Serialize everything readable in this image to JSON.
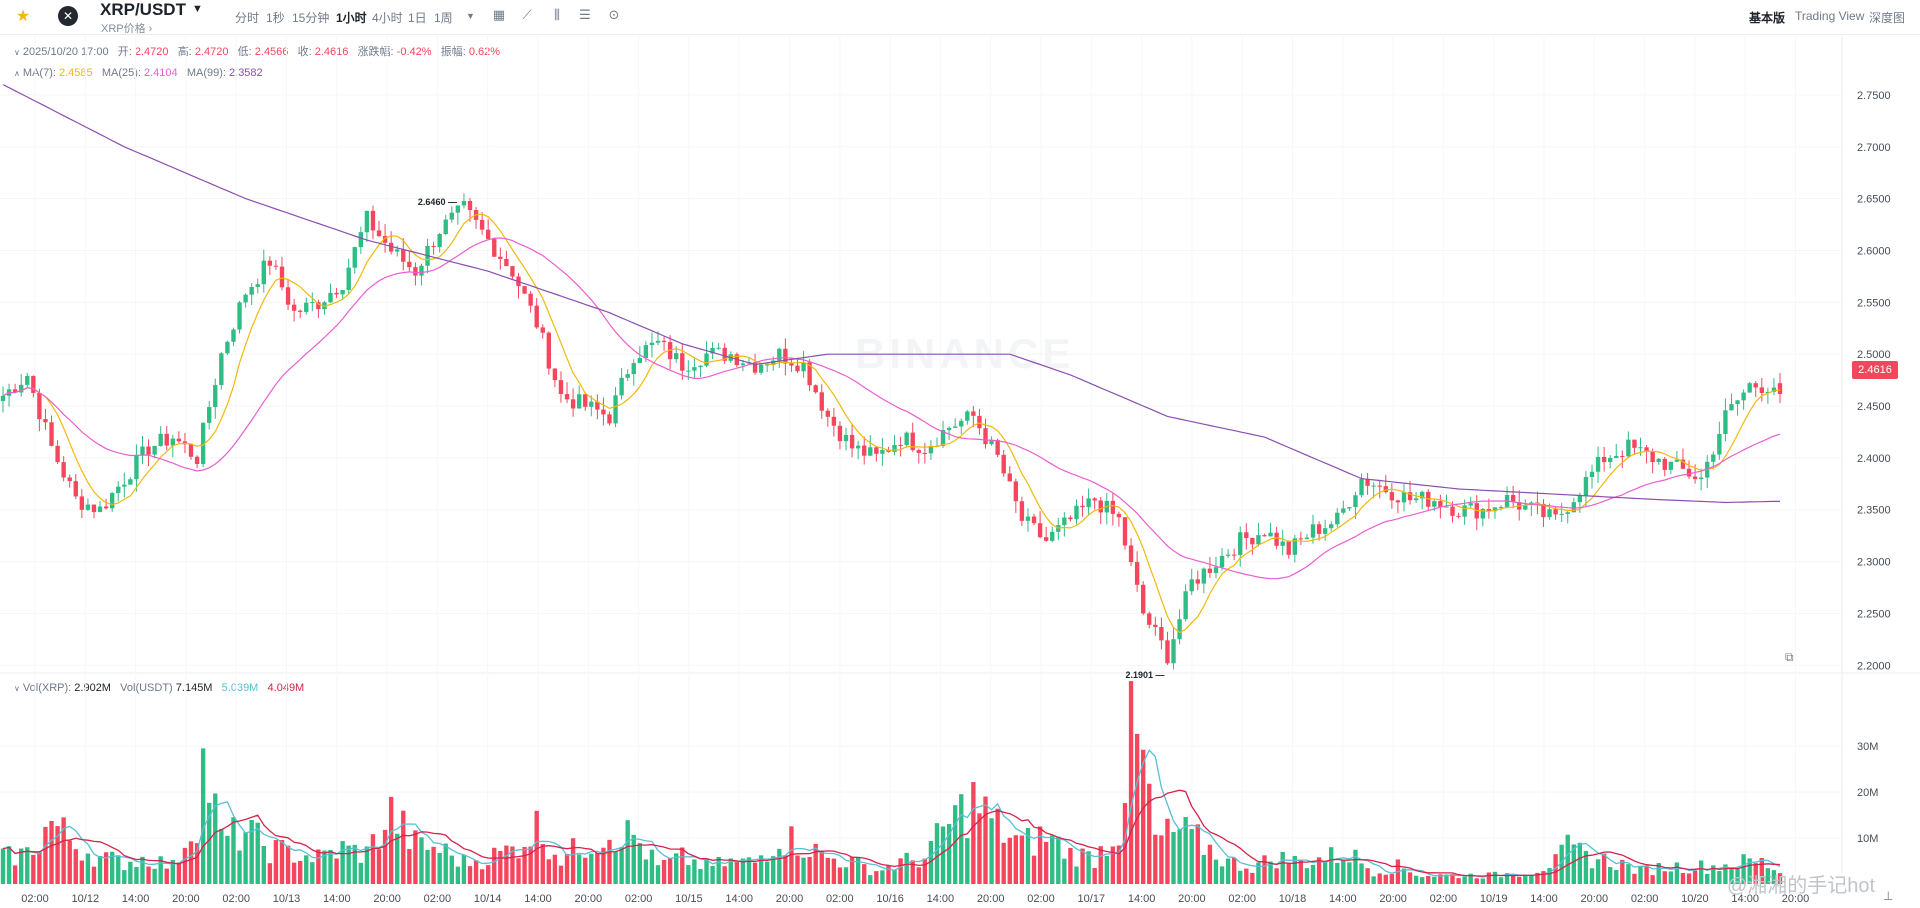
{
  "header": {
    "pair": "XRP/USDT",
    "subtitle": "XRP价格",
    "intervals": [
      "分时",
      "1秒",
      "15分钟",
      "1小时",
      "4小时",
      "1日",
      "1周"
    ],
    "active_interval": "1小时",
    "tools": [
      "calendar-icon",
      "line-chart-icon",
      "candle-type-icon",
      "indicator-settings-icon",
      "settings-icon"
    ],
    "views": [
      "基本版",
      "Trading View",
      "深度图"
    ],
    "active_view": "基本版"
  },
  "ohlc": {
    "time": "2025/10/20 17:00",
    "open_label": "开:",
    "open": "2.4720",
    "high_label": "高:",
    "high": "2.4720",
    "low_label": "低:",
    "low": "2.4566",
    "close_label": "收:",
    "close": "2.4616",
    "change_label": "涨跌幅:",
    "change": "-0.42%",
    "amp_label": "振幅:",
    "amp": "0.62%"
  },
  "ma": {
    "ma7_label": "MA(7):",
    "ma7": "2.4585",
    "ma25_label": "MA(25):",
    "ma25": "2.4104",
    "ma99_label": "MA(99):",
    "ma99": "2.3582"
  },
  "vol": {
    "xrp_label": "Vol(XRP):",
    "xrp": "2.902M",
    "usdt_label": "Vol(USDT)",
    "usdt": "7.145M",
    "ma1": "5.039M",
    "ma2": "4.049M"
  },
  "colors": {
    "up": "#2ebd85",
    "down": "#f6465d",
    "ma7": "#f0b90b",
    "ma25": "#e95fd1",
    "ma99": "#8a4fb0",
    "vol_ma1": "#58bfd6",
    "vol_ma2": "#d6234a"
  },
  "current_price": "2.4616",
  "watermark": "BINANCE",
  "footer_mark": "@湘湘的手记hot",
  "chart_data": {
    "type": "candlestick",
    "interval": "1h",
    "price_axis": {
      "ticks": [
        "2.7500",
        "2.7000",
        "2.6500",
        "2.6000",
        "2.5500",
        "2.5000",
        "2.4500",
        "2.4000",
        "2.3500",
        "2.3000",
        "2.2500",
        "2.2000"
      ],
      "range": [
        2.18,
        2.775
      ]
    },
    "volume_axis": {
      "ticks": [
        "30M",
        "20M",
        "10M"
      ],
      "range": [
        0,
        37
      ]
    },
    "time_ticks": [
      "02:00",
      "10/12",
      "14:00",
      "20:00",
      "02:00",
      "10/13",
      "14:00",
      "20:00",
      "02:00",
      "10/14",
      "14:00",
      "20:00",
      "02:00",
      "10/15",
      "14:00",
      "20:00",
      "02:00",
      "10/16",
      "14:00",
      "20:00",
      "02:00",
      "10/17",
      "14:00",
      "20:00",
      "02:00",
      "10/18",
      "14:00",
      "20:00",
      "02:00",
      "10/19",
      "14:00",
      "20:00",
      "02:00",
      "10/20",
      "14:00",
      "20:00"
    ],
    "annotations": {
      "high": "2.6460",
      "low": "2.1901"
    },
    "close_path": [
      [
        0,
        2.46
      ],
      [
        4,
        2.48
      ],
      [
        8,
        2.41
      ],
      [
        12,
        2.36
      ],
      [
        16,
        2.35
      ],
      [
        20,
        2.38
      ],
      [
        24,
        2.41
      ],
      [
        28,
        2.42
      ],
      [
        32,
        2.4
      ],
      [
        36,
        2.5
      ],
      [
        40,
        2.56
      ],
      [
        44,
        2.59
      ],
      [
        48,
        2.54
      ],
      [
        52,
        2.55
      ],
      [
        56,
        2.57
      ],
      [
        60,
        2.63
      ],
      [
        64,
        2.6
      ],
      [
        68,
        2.58
      ],
      [
        72,
        2.62
      ],
      [
        76,
        2.64
      ],
      [
        80,
        2.61
      ],
      [
        84,
        2.58
      ],
      [
        88,
        2.53
      ],
      [
        92,
        2.46
      ],
      [
        96,
        2.45
      ],
      [
        100,
        2.44
      ],
      [
        104,
        2.5
      ],
      [
        108,
        2.51
      ],
      [
        112,
        2.49
      ],
      [
        116,
        2.5
      ],
      [
        120,
        2.5
      ],
      [
        124,
        2.49
      ],
      [
        128,
        2.5
      ],
      [
        132,
        2.49
      ],
      [
        136,
        2.44
      ],
      [
        140,
        2.41
      ],
      [
        144,
        2.4
      ],
      [
        148,
        2.42
      ],
      [
        152,
        2.41
      ],
      [
        156,
        2.43
      ],
      [
        160,
        2.44
      ],
      [
        164,
        2.4
      ],
      [
        168,
        2.34
      ],
      [
        172,
        2.32
      ],
      [
        176,
        2.34
      ],
      [
        180,
        2.36
      ],
      [
        184,
        2.34
      ],
      [
        188,
        2.25
      ],
      [
        192,
        2.21
      ],
      [
        196,
        2.28
      ],
      [
        200,
        2.3
      ],
      [
        204,
        2.32
      ],
      [
        208,
        2.33
      ],
      [
        212,
        2.31
      ],
      [
        216,
        2.33
      ],
      [
        220,
        2.34
      ],
      [
        224,
        2.38
      ],
      [
        228,
        2.37
      ],
      [
        232,
        2.36
      ],
      [
        236,
        2.36
      ],
      [
        240,
        2.35
      ],
      [
        244,
        2.35
      ],
      [
        248,
        2.36
      ],
      [
        252,
        2.35
      ],
      [
        256,
        2.34
      ],
      [
        260,
        2.37
      ],
      [
        264,
        2.4
      ],
      [
        268,
        2.41
      ],
      [
        272,
        2.4
      ],
      [
        276,
        2.39
      ],
      [
        280,
        2.38
      ],
      [
        284,
        2.44
      ],
      [
        288,
        2.47
      ],
      [
        292,
        2.47
      ],
      [
        293,
        2.4616
      ]
    ],
    "ma99_path": [
      [
        0,
        2.76
      ],
      [
        20,
        2.7
      ],
      [
        40,
        2.65
      ],
      [
        60,
        2.61
      ],
      [
        80,
        2.58
      ],
      [
        100,
        2.54
      ],
      [
        112,
        2.51
      ],
      [
        124,
        2.49
      ],
      [
        136,
        2.5
      ],
      [
        150,
        2.5
      ],
      [
        166,
        2.5
      ],
      [
        176,
        2.48
      ],
      [
        192,
        2.44
      ],
      [
        208,
        2.42
      ],
      [
        224,
        2.38
      ],
      [
        240,
        2.37
      ],
      [
        256,
        2.365
      ],
      [
        272,
        2.36
      ],
      [
        284,
        2.357
      ],
      [
        292,
        2.358
      ]
    ],
    "vol_profile": [
      [
        0,
        6
      ],
      [
        4,
        7
      ],
      [
        8,
        14
      ],
      [
        12,
        9
      ],
      [
        16,
        6
      ],
      [
        20,
        5
      ],
      [
        24,
        6
      ],
      [
        28,
        4
      ],
      [
        32,
        16
      ],
      [
        33,
        27
      ],
      [
        34,
        23
      ],
      [
        36,
        10
      ],
      [
        40,
        12
      ],
      [
        44,
        8
      ],
      [
        48,
        7
      ],
      [
        52,
        6
      ],
      [
        56,
        8
      ],
      [
        60,
        7
      ],
      [
        64,
        16
      ],
      [
        68,
        9
      ],
      [
        72,
        8
      ],
      [
        76,
        5
      ],
      [
        80,
        6
      ],
      [
        84,
        8
      ],
      [
        88,
        13
      ],
      [
        92,
        6
      ],
      [
        96,
        9
      ],
      [
        100,
        12
      ],
      [
        104,
        11
      ],
      [
        108,
        4
      ],
      [
        112,
        6
      ],
      [
        116,
        4
      ],
      [
        120,
        5
      ],
      [
        124,
        5
      ],
      [
        128,
        11
      ],
      [
        132,
        9
      ],
      [
        136,
        6
      ],
      [
        140,
        5
      ],
      [
        144,
        3
      ],
      [
        148,
        5
      ],
      [
        152,
        6
      ],
      [
        156,
        14
      ],
      [
        160,
        19
      ],
      [
        164,
        13
      ],
      [
        168,
        9
      ],
      [
        172,
        11
      ],
      [
        176,
        7
      ],
      [
        180,
        6
      ],
      [
        184,
        13
      ],
      [
        186,
        33
      ],
      [
        188,
        28
      ],
      [
        190,
        10
      ],
      [
        194,
        12
      ],
      [
        198,
        9
      ],
      [
        202,
        5
      ],
      [
        206,
        4
      ],
      [
        210,
        6
      ],
      [
        214,
        5
      ],
      [
        218,
        6
      ],
      [
        222,
        7
      ],
      [
        226,
        3
      ],
      [
        230,
        4
      ],
      [
        234,
        2
      ],
      [
        240,
        2
      ],
      [
        246,
        2
      ],
      [
        252,
        3
      ],
      [
        256,
        5
      ],
      [
        258,
        8
      ],
      [
        262,
        6
      ],
      [
        266,
        5
      ],
      [
        270,
        3
      ],
      [
        274,
        4
      ],
      [
        278,
        4
      ],
      [
        282,
        4
      ],
      [
        286,
        5
      ],
      [
        290,
        5
      ],
      [
        293,
        3
      ]
    ]
  }
}
